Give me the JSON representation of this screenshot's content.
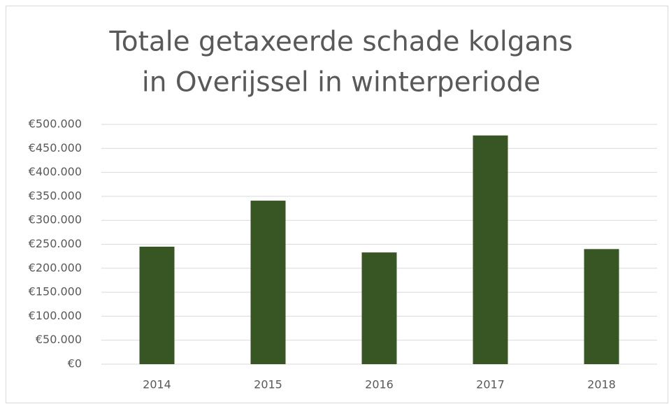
{
  "chart_data": {
    "type": "bar",
    "title": [
      "Totale getaxeerde schade kolgans",
      "in Overijssel in winterperiode"
    ],
    "categories": [
      "2014",
      "2015",
      "2016",
      "2017",
      "2018"
    ],
    "values": [
      245000,
      341000,
      233000,
      477000,
      240000
    ],
    "color": "#375623",
    "ylim": [
      0,
      500000
    ],
    "yticks": [
      {
        "value": 0,
        "label": "€0"
      },
      {
        "value": 50000,
        "label": "€50.000"
      },
      {
        "value": 100000,
        "label": "€100.000"
      },
      {
        "value": 150000,
        "label": "€150.000"
      },
      {
        "value": 200000,
        "label": "€200.000"
      },
      {
        "value": 250000,
        "label": "€250.000"
      },
      {
        "value": 300000,
        "label": "€300.000"
      },
      {
        "value": 350000,
        "label": "€350.000"
      },
      {
        "value": 400000,
        "label": "€400.000"
      },
      {
        "value": 450000,
        "label": "€450.000"
      },
      {
        "value": 500000,
        "label": "€500.000"
      }
    ],
    "grid": true
  }
}
